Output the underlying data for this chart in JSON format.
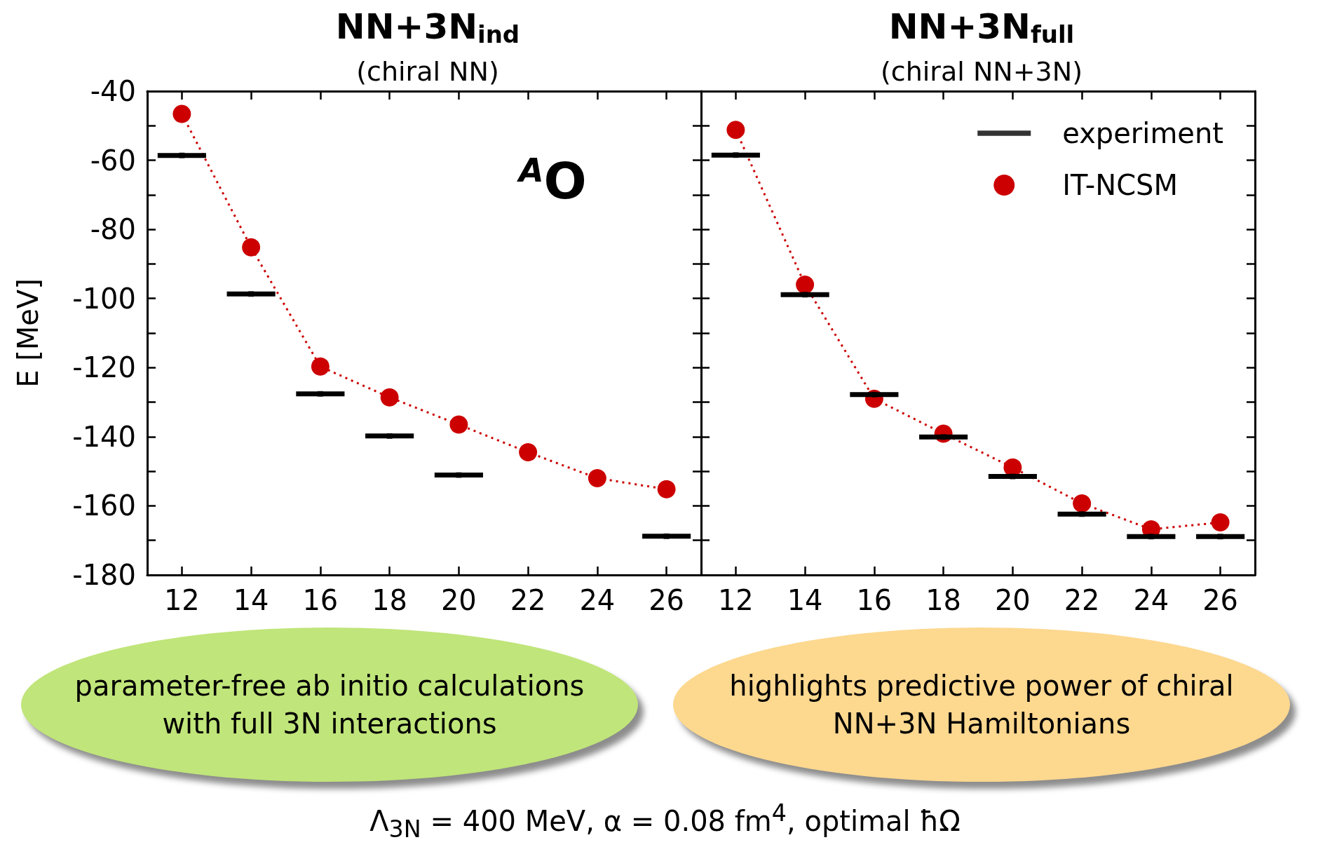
{
  "chart_data": [
    {
      "type": "line",
      "title": "NN+3N$_{ind}$",
      "subtitle": "(chiral NN)",
      "ylabel": "E [MeV]",
      "x": [
        12,
        14,
        16,
        18,
        20,
        22,
        24,
        26
      ],
      "series": [
        {
          "type": "scatter",
          "marker": "square",
          "color": "#000000",
          "values": [
            -58.6,
            -98.7,
            -127.6,
            -139.8,
            -151.1,
            null,
            null,
            -168.8
          ],
          "xerrors": [
            0.7,
            0.7,
            0.7,
            0.7,
            0.7,
            null,
            null,
            0.7
          ]
        },
        {
          "marker": "circle",
          "line_style": "dotted",
          "color": "#cc0000",
          "values": [
            -46.6,
            -85.2,
            -119.7,
            -128.6,
            -136.5,
            -144.5,
            -152.0,
            -155.2
          ]
        }
      ],
      "xlim": [
        11,
        27
      ],
      "xticks": [
        12,
        14,
        16,
        18,
        20,
        22,
        24,
        26
      ],
      "ylim": [
        -180,
        -40
      ],
      "yticks": [
        -180,
        {
          "value": -170,
          "label": null
        },
        -160,
        {
          "value": -150,
          "label": null
        },
        -140,
        {
          "value": -130,
          "label": null
        },
        -120,
        {
          "value": -110,
          "label": null
        },
        -100,
        {
          "value": -90,
          "label": null
        },
        -80,
        {
          "value": -70,
          "label": null
        },
        -60,
        {
          "value": -50,
          "label": null
        },
        -40
      ],
      "grid": false,
      "legend": false,
      "annotations": [
        "$^{A}$O",
        "parameter-free ab initio calculations with full 3N interactions",
        "highlights predictive power of chiral NN+3N Hamiltonians",
        "Λ$_{3N}$ = 400 MeV,  α = 0.08 fm$^{4}$, optimal ħΩ"
      ]
    },
    {
      "type": "line",
      "title": "NN+3N$_{full}$",
      "subtitle": "(chiral NN+3N)",
      "x": [
        12,
        14,
        16,
        18,
        20,
        22,
        24,
        26
      ],
      "series": [
        {
          "type": "scatter",
          "name": "experiment",
          "marker": "square",
          "color": "#000000",
          "values": [
            -58.5,
            -98.9,
            -127.8,
            -140.1,
            -151.5,
            -162.4,
            -168.9,
            -168.9
          ],
          "xerrors": [
            0.7,
            0.7,
            0.7,
            0.7,
            0.7,
            0.7,
            0.7,
            0.7
          ]
        },
        {
          "name": "IT-NCSM",
          "marker": "circle",
          "line_style": "dotted",
          "color": "#cc0000",
          "values": [
            -51.2,
            -96.0,
            -129.0,
            -139.1,
            -148.9,
            -159.3,
            -166.8,
            -164.8
          ]
        }
      ],
      "xlim": [
        11,
        27
      ],
      "xticks": [
        12,
        14,
        16,
        18,
        20,
        22,
        24,
        26
      ],
      "ylim": [
        -180,
        -40
      ],
      "yticks": [
        -180,
        {
          "value": -170,
          "label": null
        },
        -160,
        {
          "value": -150,
          "label": null
        },
        -140,
        {
          "value": -130,
          "label": null
        },
        -120,
        {
          "value": -110,
          "label": null
        },
        -100,
        {
          "value": -90,
          "label": null
        },
        -80,
        {
          "value": -70,
          "label": null
        },
        -60,
        {
          "value": -50,
          "label": null
        },
        -40
      ],
      "grid": false,
      "legend": "top right",
      "tick_labels": "x"
    }
  ]
}
